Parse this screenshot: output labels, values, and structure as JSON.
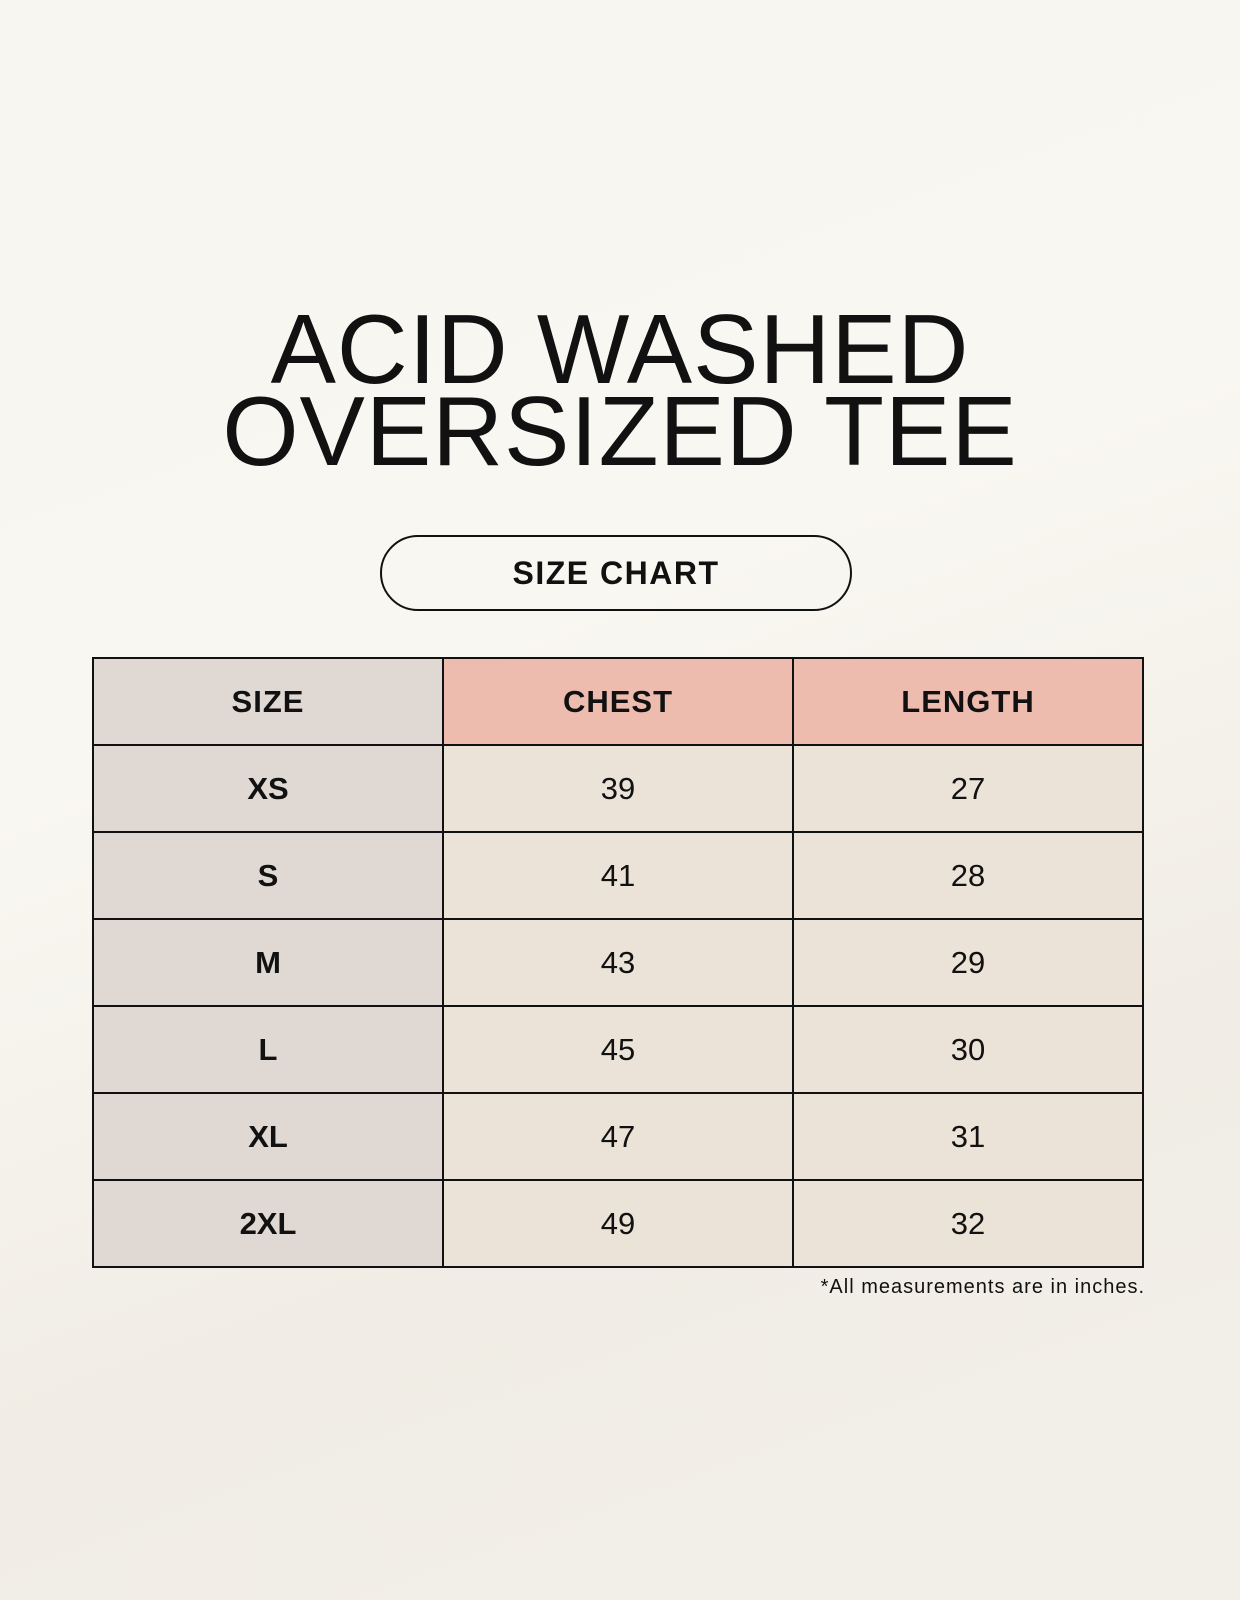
{
  "title": {
    "line1": "ACID WASHED",
    "line2": "OVERSIZED TEE"
  },
  "badge": "SIZE CHART",
  "table": {
    "headers": [
      "SIZE",
      "CHEST",
      "LENGTH"
    ],
    "rows": [
      [
        "XS",
        "39",
        "27"
      ],
      [
        "S",
        "41",
        "28"
      ],
      [
        "M",
        "43",
        "29"
      ],
      [
        "L",
        "45",
        "30"
      ],
      [
        "XL",
        "47",
        "31"
      ],
      [
        "2XL",
        "49",
        "32"
      ]
    ]
  },
  "footnote": "*All measurements are in inches.",
  "colors": {
    "size_column": "#e0d8d2",
    "header_accent": "#eebcae",
    "cell": "#ebe3d8"
  }
}
